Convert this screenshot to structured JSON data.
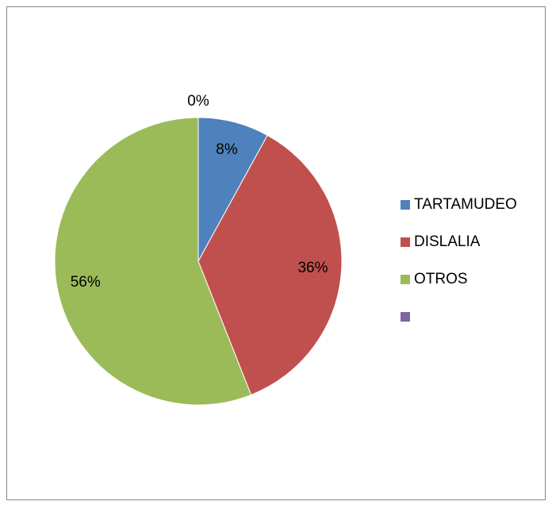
{
  "chart_data": {
    "type": "pie",
    "categories": [
      "TARTAMUDEO",
      "DISLALIA",
      "OTROS",
      null
    ],
    "values": [
      8,
      36,
      56,
      0
    ],
    "value_labels": [
      "8%",
      "36%",
      "56%",
      "0%"
    ],
    "colors": [
      "#4f81bd",
      "#c0504d",
      "#9bbb59",
      "#8064a2"
    ],
    "legend": "right"
  }
}
